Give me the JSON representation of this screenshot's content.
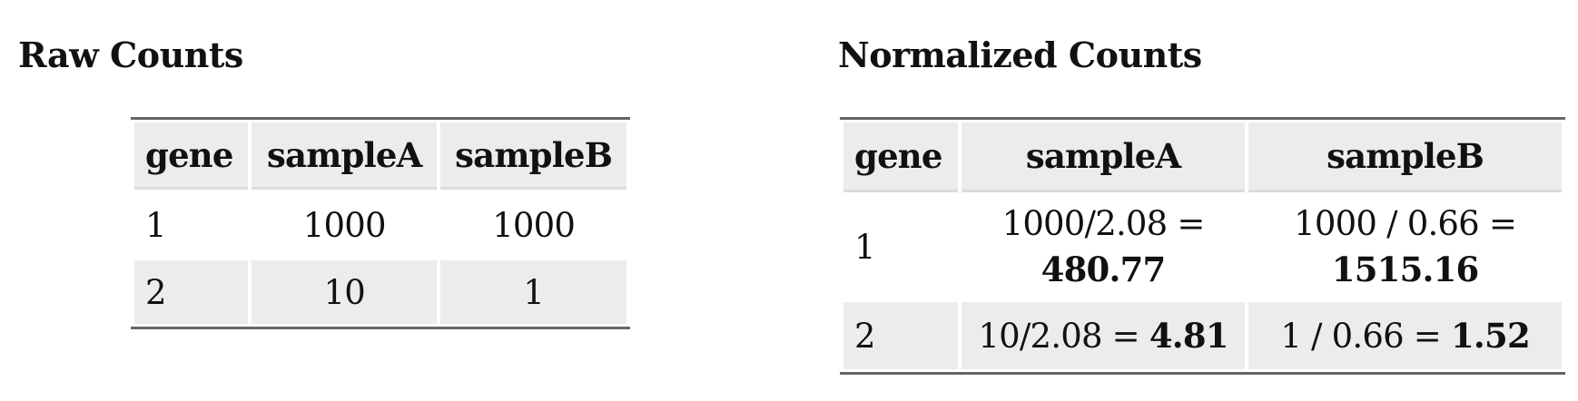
{
  "raw": {
    "title": "Raw Counts",
    "headers": [
      "gene",
      "sampleA",
      "sampleB"
    ],
    "rows": [
      {
        "gene": "1",
        "sampleA": "1000",
        "sampleB": "1000"
      },
      {
        "gene": "2",
        "sampleA": "10",
        "sampleB": "1"
      }
    ]
  },
  "normalized": {
    "title": "Normalized Counts",
    "headers": [
      "gene",
      "sampleA",
      "sampleB"
    ],
    "rows": [
      {
        "gene": "1",
        "sampleA": {
          "expr": "1000/2.08 =",
          "result": "480.77"
        },
        "sampleB": {
          "expr": "1000 / 0.66 =",
          "result": "1515.16"
        }
      },
      {
        "gene": "2",
        "sampleA": {
          "expr": "10/2.08 =",
          "result": "4.81"
        },
        "sampleB": {
          "expr": "1 / 0.66 =",
          "result": "1.52"
        }
      }
    ]
  }
}
